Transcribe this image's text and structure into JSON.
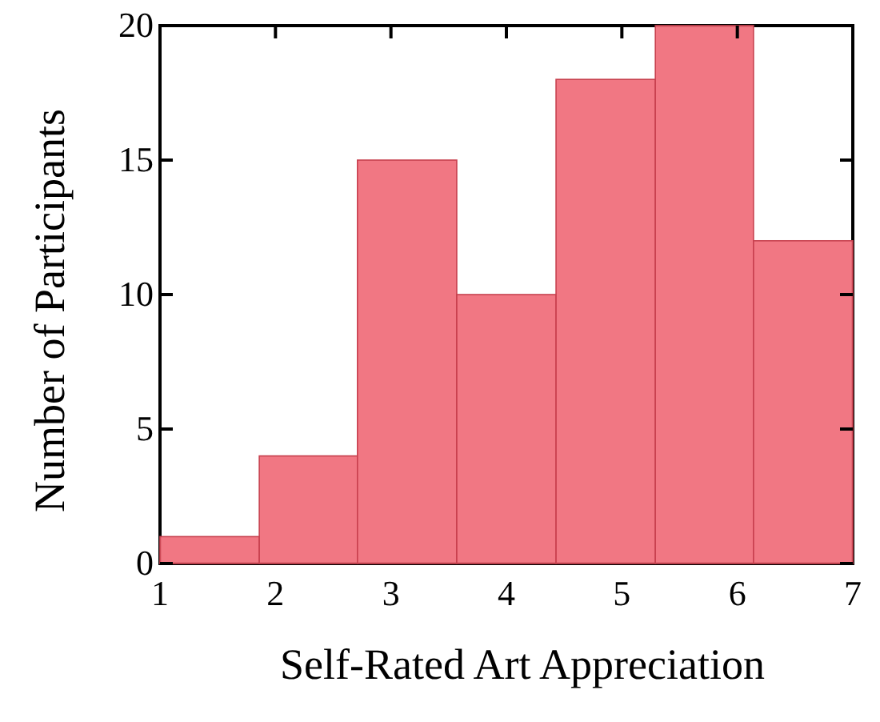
{
  "chart_data": {
    "type": "histogram",
    "xlabel": "Self-Rated Art Appreciation",
    "ylabel": "Number of Participants",
    "bins": [
      1,
      1.86,
      2.71,
      3.57,
      4.43,
      5.29,
      6.14,
      7
    ],
    "values": [
      1,
      4,
      15,
      10,
      18,
      20,
      12
    ],
    "color": "#f0707c",
    "xlim": [
      1,
      7
    ],
    "xticks": [
      1,
      2,
      3,
      4,
      5,
      6,
      7
    ],
    "ylim": [
      0,
      20
    ],
    "yticks": [
      0,
      5,
      10,
      15,
      20
    ]
  }
}
